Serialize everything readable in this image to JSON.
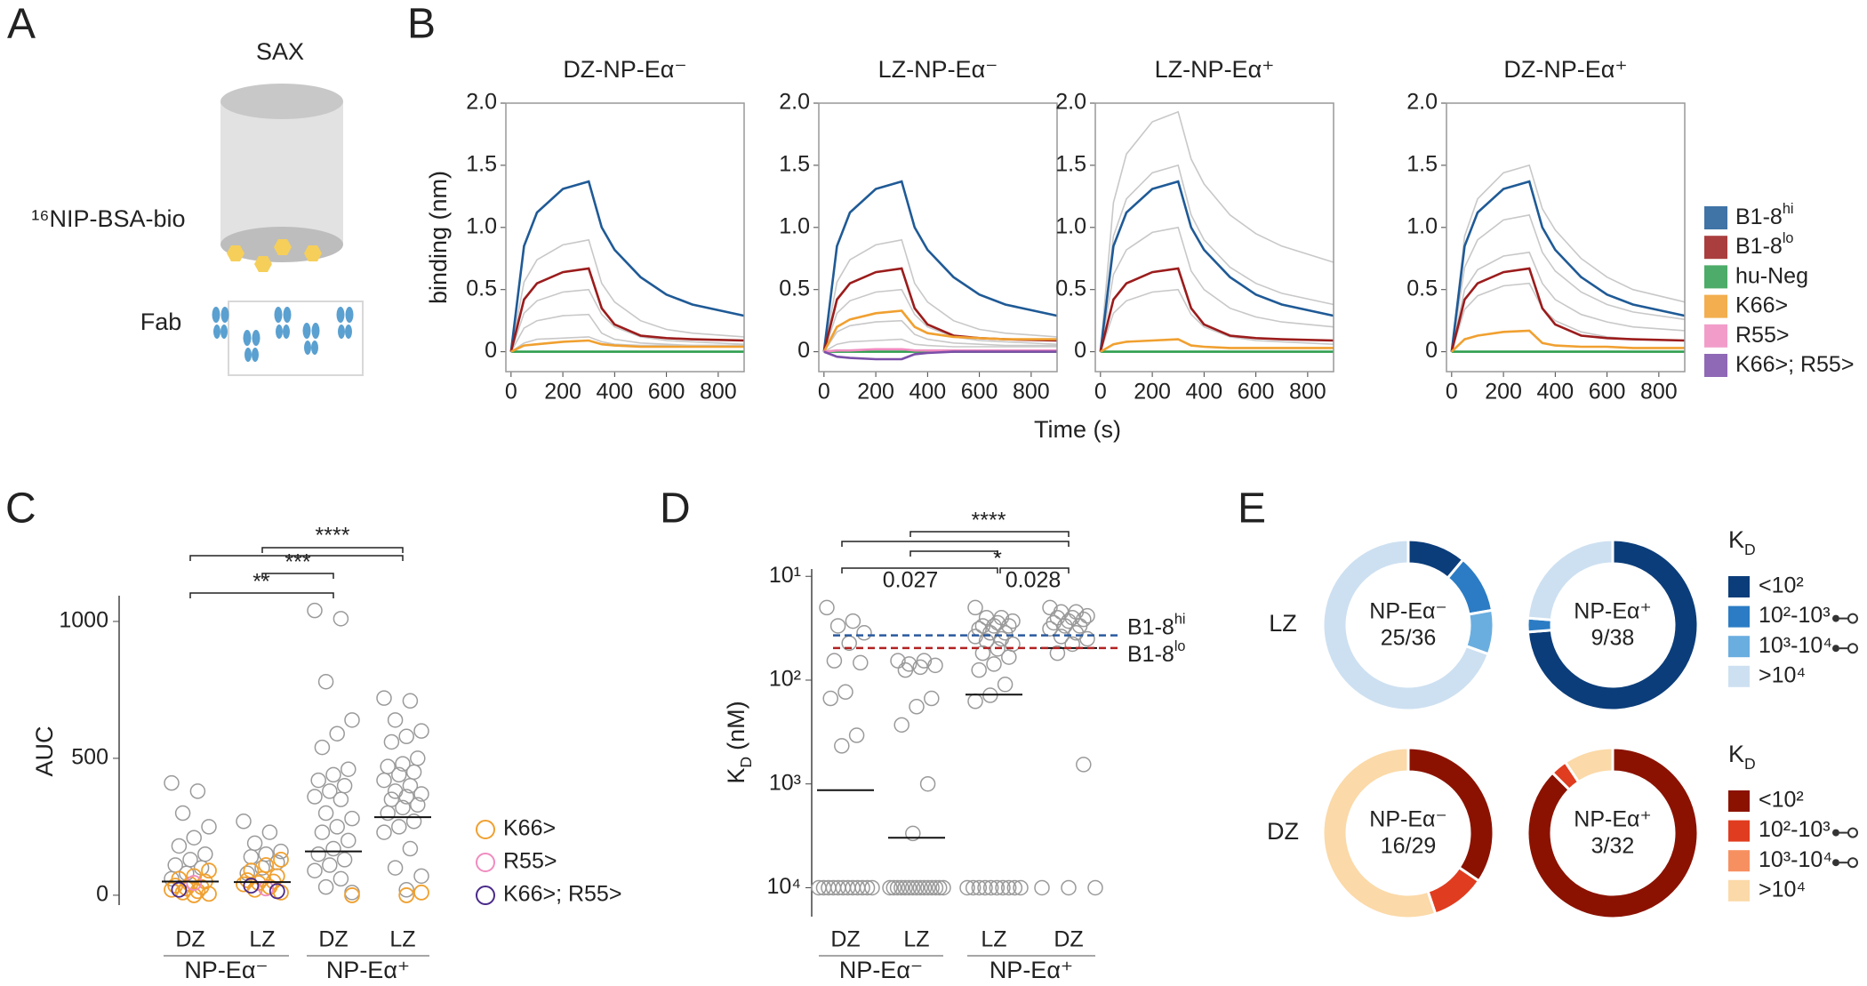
{
  "panel_labels": [
    "A",
    "B",
    "C",
    "D",
    "E"
  ],
  "diagram": {
    "column": "SAX",
    "antigen": "¹⁶NIP-BSA-bio",
    "analyte": "Fab"
  },
  "chart_data": [
    {
      "type": "line",
      "y_label": "binding (nm)",
      "x_label": "Time (s)",
      "x": [
        0,
        50,
        100,
        200,
        300,
        350,
        400,
        500,
        600,
        700,
        900
      ],
      "xlim": [
        -20,
        900
      ],
      "ylim": [
        -0.16,
        2.0
      ],
      "xticks": [
        0,
        200,
        400,
        600,
        800
      ],
      "yticks": [
        0,
        0.5,
        {
          "value": 1,
          "label": "1.0"
        },
        1.5,
        {
          "value": 2,
          "label": "2.0"
        }
      ],
      "series": [
        {
          "name": "B1-8",
          "name_sup": "hi",
          "color": "#1f5a96"
        },
        {
          "name": "B1-8",
          "name_sup": "lo",
          "color": "#9b1c1c"
        },
        {
          "name": "hu-Neg",
          "color": "#2e9e4f"
        },
        {
          "name": "K66>",
          "color": "#f0a030"
        },
        {
          "name": "R55>",
          "color": "#f08cc0"
        },
        {
          "name": "K66>; R55>",
          "color": "#7b4fa8"
        }
      ],
      "background_color": "#c8c8c8",
      "panels": [
        {
          "title": "DZ-NP-Eα⁻",
          "series_values": [
            [
              0,
              0.85,
              1.12,
              1.31,
              1.37,
              1.0,
              0.82,
              0.6,
              0.46,
              0.38,
              0.29
            ],
            [
              0,
              0.42,
              0.55,
              0.64,
              0.67,
              0.35,
              0.22,
              0.13,
              0.11,
              0.1,
              0.09
            ],
            [
              0,
              0,
              0,
              0,
              0,
              0,
              0,
              0,
              0,
              0,
              0
            ],
            [
              0,
              0.05,
              0.06,
              0.08,
              0.09,
              0.06,
              0.05,
              0.04,
              0.04,
              0.04,
              0.04
            ],
            null,
            null
          ],
          "background": [
            [
              0,
              0.56,
              0.74,
              0.86,
              0.9,
              0.55,
              0.4,
              0.25,
              0.18,
              0.15,
              0.12
            ],
            [
              0,
              0.31,
              0.41,
              0.48,
              0.5,
              0.3,
              0.2,
              0.12,
              0.09,
              0.08,
              0.06
            ],
            [
              0,
              0.19,
              0.25,
              0.29,
              0.3,
              0.15,
              0.1,
              0.07,
              0.06,
              0.05,
              0.05
            ],
            [
              0,
              0.07,
              0.1,
              0.11,
              0.12,
              0.08,
              0.06,
              0.05,
              0.05,
              0.05,
              0.05
            ]
          ]
        },
        {
          "title": "LZ-NP-Eα⁻",
          "series_values": [
            [
              0,
              0.85,
              1.12,
              1.31,
              1.37,
              1.0,
              0.82,
              0.6,
              0.46,
              0.38,
              0.29
            ],
            [
              0,
              0.42,
              0.55,
              0.64,
              0.67,
              0.35,
              0.22,
              0.13,
              0.11,
              0.1,
              0.09
            ],
            [
              0,
              0,
              0,
              0,
              0,
              0,
              0,
              0,
              0,
              0,
              0
            ],
            [
              0,
              0.2,
              0.26,
              0.31,
              0.33,
              0.2,
              0.15,
              0.12,
              0.11,
              0.1,
              0.1
            ],
            [
              0,
              0.01,
              0.01,
              0.02,
              0.02,
              0.01,
              0.01,
              0.01,
              0.01,
              0.01,
              0.01
            ],
            [
              0,
              -0.04,
              -0.05,
              -0.06,
              -0.06,
              -0.02,
              -0.01,
              0,
              0,
              0,
              0
            ]
          ],
          "background": [
            [
              0,
              0.56,
              0.74,
              0.86,
              0.9,
              0.55,
              0.4,
              0.25,
              0.18,
              0.15,
              0.12
            ],
            [
              0,
              0.31,
              0.41,
              0.48,
              0.5,
              0.3,
              0.2,
              0.12,
              0.09,
              0.08,
              0.06
            ],
            [
              0,
              0.16,
              0.21,
              0.24,
              0.25,
              0.14,
              0.1,
              0.07,
              0.06,
              0.05,
              0.05
            ],
            [
              0,
              0.06,
              0.08,
              0.09,
              0.1,
              0.06,
              0.05,
              0.04,
              0.04,
              0.04,
              0.04
            ]
          ]
        },
        {
          "title": "LZ-NP-Eα⁺",
          "series_values": [
            [
              0,
              0.85,
              1.12,
              1.31,
              1.37,
              1.0,
              0.82,
              0.6,
              0.46,
              0.38,
              0.29
            ],
            [
              0,
              0.42,
              0.55,
              0.64,
              0.67,
              0.35,
              0.22,
              0.13,
              0.11,
              0.1,
              0.09
            ],
            [
              0,
              0,
              0,
              0,
              0,
              0,
              0,
              0,
              0,
              0,
              0
            ],
            [
              0,
              0.06,
              0.08,
              0.09,
              0.1,
              0.05,
              0.04,
              0.03,
              0.03,
              0.03,
              0.03
            ],
            null,
            null
          ],
          "background": [
            [
              0,
              1.2,
              1.59,
              1.85,
              1.93,
              1.55,
              1.35,
              1.1,
              0.95,
              0.85,
              0.72
            ],
            [
              0,
              0.93,
              1.23,
              1.44,
              1.5,
              1.1,
              0.9,
              0.68,
              0.55,
              0.47,
              0.38
            ],
            [
              0,
              0.62,
              0.82,
              0.96,
              1.0,
              0.65,
              0.5,
              0.35,
              0.28,
              0.24,
              0.2
            ],
            [
              0,
              0.31,
              0.41,
              0.48,
              0.5,
              0.3,
              0.2,
              0.12,
              0.09,
              0.08,
              0.06
            ]
          ]
        },
        {
          "title": "DZ-NP-Eα⁺",
          "series_values": [
            [
              0,
              0.85,
              1.12,
              1.31,
              1.37,
              1.0,
              0.82,
              0.6,
              0.46,
              0.38,
              0.29
            ],
            [
              0,
              0.42,
              0.55,
              0.64,
              0.67,
              0.35,
              0.22,
              0.13,
              0.11,
              0.1,
              0.09
            ],
            [
              0,
              0,
              0,
              0,
              0,
              0,
              0,
              0,
              0,
              0,
              0
            ],
            [
              0,
              0.1,
              0.13,
              0.16,
              0.17,
              0.07,
              0.05,
              0.04,
              0.04,
              0.03,
              0.03
            ],
            null,
            null
          ],
          "background": [
            [
              0,
              0.93,
              1.23,
              1.44,
              1.5,
              1.15,
              0.98,
              0.75,
              0.6,
              0.5,
              0.4
            ],
            [
              0,
              0.68,
              0.9,
              1.06,
              1.1,
              0.8,
              0.65,
              0.48,
              0.38,
              0.32,
              0.26
            ],
            [
              0,
              0.5,
              0.66,
              0.77,
              0.8,
              0.55,
              0.42,
              0.3,
              0.24,
              0.2,
              0.17
            ],
            [
              0,
              0.34,
              0.45,
              0.53,
              0.55,
              0.35,
              0.25,
              0.16,
              0.12,
              0.1,
              0.09
            ]
          ]
        }
      ]
    },
    {
      "type": "strip",
      "y_label": "AUC",
      "categories": [
        "DZ",
        "LZ",
        "DZ",
        "LZ"
      ],
      "groups": [
        "NP-Eα⁻",
        "NP-Eα⁺"
      ],
      "ylim": [
        -36,
        1094
      ],
      "yticks": [
        0,
        500,
        1000
      ],
      "point_color": "#9a9a9a",
      "points": [
        [
          410,
          380,
          300,
          250,
          210,
          180,
          150,
          130,
          110,
          100,
          80,
          60
        ],
        [
          270,
          230,
          190,
          160,
          150,
          140,
          120,
          100,
          80
        ],
        [
          1040,
          1010,
          780,
          640,
          590,
          540,
          460,
          440,
          420,
          400,
          380,
          360,
          350,
          300,
          280,
          250,
          230,
          200,
          170,
          150,
          130,
          110,
          90,
          60,
          30,
          10
        ],
        [
          720,
          710,
          640,
          600,
          580,
          560,
          500,
          480,
          470,
          450,
          440,
          420,
          400,
          380,
          370,
          360,
          350,
          330,
          320,
          300,
          270,
          250,
          230,
          170,
          100,
          70,
          20
        ]
      ],
      "series": [
        {
          "name": "K66>",
          "color": "#f0a030",
          "values": [
            [
              90,
              70,
              60,
              50,
              40,
              35,
              30,
              25,
              20,
              15,
              10,
              5,
              0
            ],
            [
              130,
              110,
              90,
              70,
              60,
              55,
              50,
              45,
              40,
              30,
              20,
              10
            ],
            [
              0
            ],
            [
              10,
              0
            ]
          ]
        },
        {
          "name": "R55>",
          "color": "#f08cc0",
          "values": [
            [
              45
            ],
            [
              25
            ],
            [],
            []
          ]
        },
        {
          "name": "K66>; R55>",
          "color": "#4a2a8a",
          "values": [
            [
              20
            ],
            [
              35,
              15
            ],
            [],
            []
          ]
        }
      ],
      "medians": [
        50,
        48,
        160,
        285
      ],
      "significance": [
        "****",
        "***",
        "**"
      ]
    },
    {
      "type": "strip",
      "log": true,
      "y_label": "K",
      "y_label_sub": "D",
      "y_label_unit": "(nM)",
      "categories": [
        "DZ",
        "LZ",
        "LZ",
        "DZ"
      ],
      "groups": [
        "NP-Eα⁻",
        "NP-Eα⁺"
      ],
      "ylim": [
        19000,
        8.5
      ],
      "yticks": [
        {
          "value": 10,
          "label": "10¹"
        },
        {
          "value": 100,
          "label": "10²"
        },
        {
          "value": 1000,
          "label": "10³"
        },
        {
          "value": 10000,
          "label": "10⁴"
        }
      ],
      "point_color": "#9a9a9a",
      "points": [
        [
          20,
          27,
          30,
          35,
          44,
          65,
          68,
          130,
          150,
          340,
          430,
          10000,
          10000,
          10000,
          10000,
          10000,
          10000,
          10000,
          10000,
          10000,
          10000,
          10000,
          10000
        ],
        [
          65,
          65,
          70,
          72,
          75,
          80,
          150,
          180,
          270,
          1000,
          3000,
          10000,
          10000,
          10000,
          10000,
          10000,
          10000,
          10000,
          10000,
          10000,
          10000,
          10000,
          10000,
          10000,
          10000,
          10000
        ],
        [
          20,
          25,
          25,
          27,
          28,
          30,
          30,
          30,
          32,
          35,
          35,
          38,
          40,
          42,
          45,
          50,
          55,
          60,
          70,
          80,
          110,
          140,
          160,
          10000,
          10000,
          10000,
          10000,
          10000,
          10000,
          10000,
          10000,
          10000,
          10000
        ],
        [
          20,
          22,
          22,
          24,
          25,
          25,
          26,
          27,
          28,
          30,
          30,
          32,
          35,
          38,
          40,
          45,
          55,
          650,
          10000,
          10000,
          10000
        ]
      ],
      "medians": [
        1150,
        3300,
        138,
        49
      ],
      "reference_lines": [
        {
          "name": "B1-8",
          "name_sup": "hi",
          "value": 37,
          "color": "#2a5a9e"
        },
        {
          "name": "B1-8",
          "name_sup": "lo",
          "value": 49,
          "color": "#b22222"
        }
      ],
      "significance": [
        "****",
        "*",
        "0.027",
        "0.028"
      ]
    },
    {
      "type": "donut",
      "categories": [
        "<10²",
        "10²-10³",
        "10³-10⁴",
        ">10⁴"
      ],
      "legend_title": "K",
      "legend_title_sub": "D",
      "rows": [
        {
          "label": "LZ",
          "label_color": "#1f5aa0",
          "colors": [
            "#0b3d7a",
            "#2b7cc4",
            "#6aaee0",
            "#cde0f1"
          ],
          "donuts": [
            {
              "title": "NP-Eα⁻",
              "center": "25/36",
              "values": [
                4,
                4,
                3,
                25
              ]
            },
            {
              "title": "NP-Eα⁺",
              "center": "9/38",
              "values": [
                28,
                1,
                0,
                9
              ]
            }
          ]
        },
        {
          "label": "DZ",
          "label_color": "#b01c1c",
          "colors": [
            "#8b1200",
            "#e03c1f",
            "#f79060",
            "#fbd9a8"
          ],
          "donuts": [
            {
              "title": "NP-Eα⁻",
              "center": "16/29",
              "values": [
                10,
                3,
                0,
                16
              ]
            },
            {
              "title": "NP-Eα⁺",
              "center": "3/32",
              "values": [
                28,
                1,
                0,
                3
              ]
            }
          ]
        }
      ]
    }
  ]
}
